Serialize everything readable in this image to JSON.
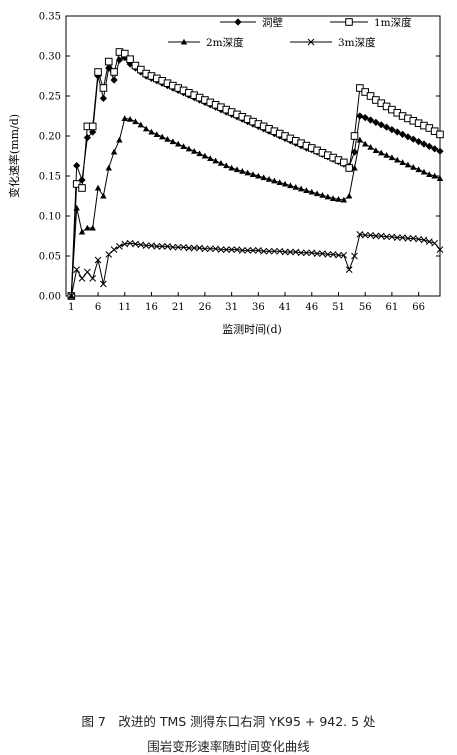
{
  "chart_data": {
    "type": "line",
    "xlabel": "监测时间(d)",
    "ylabel": "变化速率(mm/d)",
    "xlim": [
      0,
      70
    ],
    "ylim": [
      0,
      0.35
    ],
    "x_ticks": [
      1,
      6,
      11,
      16,
      21,
      26,
      31,
      36,
      41,
      46,
      51,
      56,
      61,
      66
    ],
    "x_tick_labels": [
      "1",
      "6",
      "11",
      "16",
      "21",
      "26",
      "31",
      "36",
      "41",
      "46",
      "51",
      "56",
      "61",
      "66"
    ],
    "y_ticks": [
      0,
      0.05,
      0.1,
      0.15,
      0.2,
      0.25,
      0.3,
      0.35
    ],
    "y_tick_labels": [
      "0.00",
      "0.05",
      "0.10",
      "0.15",
      "0.20",
      "0.25",
      "0.30",
      "0.35"
    ],
    "legend_position": "top, inside plot",
    "x": [
      1,
      2,
      3,
      4,
      5,
      6,
      7,
      8,
      9,
      10,
      11,
      12,
      13,
      14,
      15,
      16,
      17,
      18,
      19,
      20,
      21,
      22,
      23,
      24,
      25,
      26,
      27,
      28,
      29,
      30,
      31,
      32,
      33,
      34,
      35,
      36,
      37,
      38,
      39,
      40,
      41,
      42,
      43,
      44,
      45,
      46,
      47,
      48,
      49,
      50,
      51,
      52,
      53,
      54,
      55,
      56,
      57,
      58,
      59,
      60,
      61,
      62,
      63,
      64,
      65,
      66,
      67,
      68,
      69,
      70
    ],
    "series": [
      {
        "name": "洞壁",
        "marker": "diamond",
        "values": [
          0,
          0.163,
          0.145,
          0.198,
          0.205,
          0.275,
          0.247,
          0.285,
          0.27,
          0.295,
          0.298,
          0.29,
          0.285,
          0.28,
          0.275,
          0.272,
          0.269,
          0.266,
          0.263,
          0.26,
          0.257,
          0.254,
          0.251,
          0.248,
          0.245,
          0.242,
          0.239,
          0.236,
          0.233,
          0.23,
          0.227,
          0.224,
          0.221,
          0.218,
          0.215,
          0.212,
          0.209,
          0.206,
          0.203,
          0.2,
          0.197,
          0.194,
          0.191,
          0.188,
          0.185,
          0.183,
          0.18,
          0.177,
          0.174,
          0.171,
          0.168,
          0.165,
          0.162,
          0.18,
          0.225,
          0.223,
          0.22,
          0.217,
          0.214,
          0.211,
          0.208,
          0.205,
          0.202,
          0.199,
          0.196,
          0.193,
          0.19,
          0.187,
          0.184,
          0.181
        ]
      },
      {
        "name": "1m深度",
        "marker": "square",
        "values": [
          0,
          0.14,
          0.135,
          0.212,
          0.212,
          0.28,
          0.26,
          0.293,
          0.28,
          0.305,
          0.303,
          0.296,
          0.288,
          0.283,
          0.278,
          0.275,
          0.272,
          0.269,
          0.266,
          0.263,
          0.26,
          0.257,
          0.254,
          0.251,
          0.248,
          0.245,
          0.242,
          0.239,
          0.236,
          0.233,
          0.23,
          0.227,
          0.224,
          0.221,
          0.218,
          0.215,
          0.212,
          0.209,
          0.206,
          0.203,
          0.2,
          0.197,
          0.194,
          0.191,
          0.188,
          0.185,
          0.182,
          0.179,
          0.176,
          0.173,
          0.17,
          0.167,
          0.16,
          0.2,
          0.26,
          0.255,
          0.25,
          0.245,
          0.241,
          0.237,
          0.233,
          0.229,
          0.225,
          0.222,
          0.219,
          0.216,
          0.213,
          0.21,
          0.206,
          0.202
        ]
      },
      {
        "name": "2m深度",
        "marker": "triangle",
        "values": [
          0,
          0.11,
          0.08,
          0.085,
          0.085,
          0.135,
          0.125,
          0.16,
          0.18,
          0.195,
          0.222,
          0.221,
          0.218,
          0.214,
          0.209,
          0.205,
          0.202,
          0.199,
          0.196,
          0.193,
          0.19,
          0.187,
          0.184,
          0.181,
          0.178,
          0.175,
          0.172,
          0.169,
          0.166,
          0.163,
          0.16,
          0.158,
          0.156,
          0.154,
          0.152,
          0.15,
          0.148,
          0.146,
          0.144,
          0.142,
          0.14,
          0.138,
          0.136,
          0.134,
          0.132,
          0.13,
          0.128,
          0.126,
          0.124,
          0.122,
          0.121,
          0.12,
          0.125,
          0.16,
          0.195,
          0.19,
          0.186,
          0.182,
          0.179,
          0.176,
          0.173,
          0.17,
          0.167,
          0.164,
          0.161,
          0.158,
          0.155,
          0.152,
          0.15,
          0.147
        ]
      },
      {
        "name": "3m深度",
        "marker": "x",
        "values": [
          0,
          0.033,
          0.022,
          0.03,
          0.022,
          0.045,
          0.015,
          0.052,
          0.058,
          0.062,
          0.065,
          0.066,
          0.065,
          0.064,
          0.063,
          0.063,
          0.062,
          0.062,
          0.062,
          0.061,
          0.061,
          0.061,
          0.06,
          0.06,
          0.06,
          0.059,
          0.059,
          0.059,
          0.058,
          0.058,
          0.058,
          0.058,
          0.057,
          0.057,
          0.057,
          0.057,
          0.056,
          0.056,
          0.056,
          0.056,
          0.055,
          0.055,
          0.055,
          0.054,
          0.054,
          0.054,
          0.053,
          0.053,
          0.052,
          0.052,
          0.051,
          0.051,
          0.033,
          0.05,
          0.077,
          0.076,
          0.076,
          0.075,
          0.075,
          0.074,
          0.074,
          0.073,
          0.073,
          0.072,
          0.072,
          0.071,
          0.07,
          0.068,
          0.066,
          0.058
        ]
      }
    ]
  },
  "caption": {
    "line1": "图 7　改进的 TMS 测得东口右洞 YK95 + 942. 5 处",
    "line2": "围岩变形速率随时间变化曲线"
  }
}
